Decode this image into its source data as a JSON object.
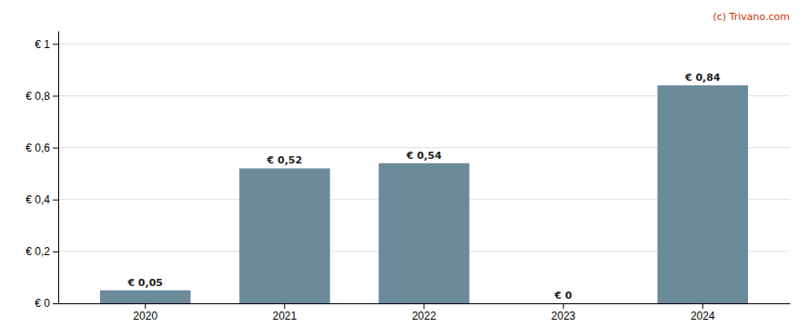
{
  "chart_data": {
    "type": "bar",
    "categories": [
      "2020",
      "2021",
      "2022",
      "2023",
      "2024"
    ],
    "values": [
      0.05,
      0.52,
      0.54,
      0.0,
      0.84
    ],
    "value_labels": [
      "€ 0,05",
      "€ 0,52",
      "€ 0,54",
      "€ 0",
      "€ 0,84"
    ],
    "data_labels": true,
    "color": "#6b8a9a",
    "ylim": [
      0,
      1.05
    ],
    "yticks": [
      {
        "value": 0,
        "label": "€ 0"
      },
      {
        "value": 0.2,
        "label": "€ 0,2"
      },
      {
        "value": 0.4,
        "label": "€ 0,4"
      },
      {
        "value": 0.6,
        "label": "€ 0,6"
      },
      {
        "value": 0.8,
        "label": "€ 0,8"
      },
      {
        "value": 1.0,
        "label": "€ 1"
      }
    ],
    "grid": true,
    "annotations": [
      {
        "text": "(c) Trivano.com",
        "color": "#cc3300"
      }
    ]
  }
}
